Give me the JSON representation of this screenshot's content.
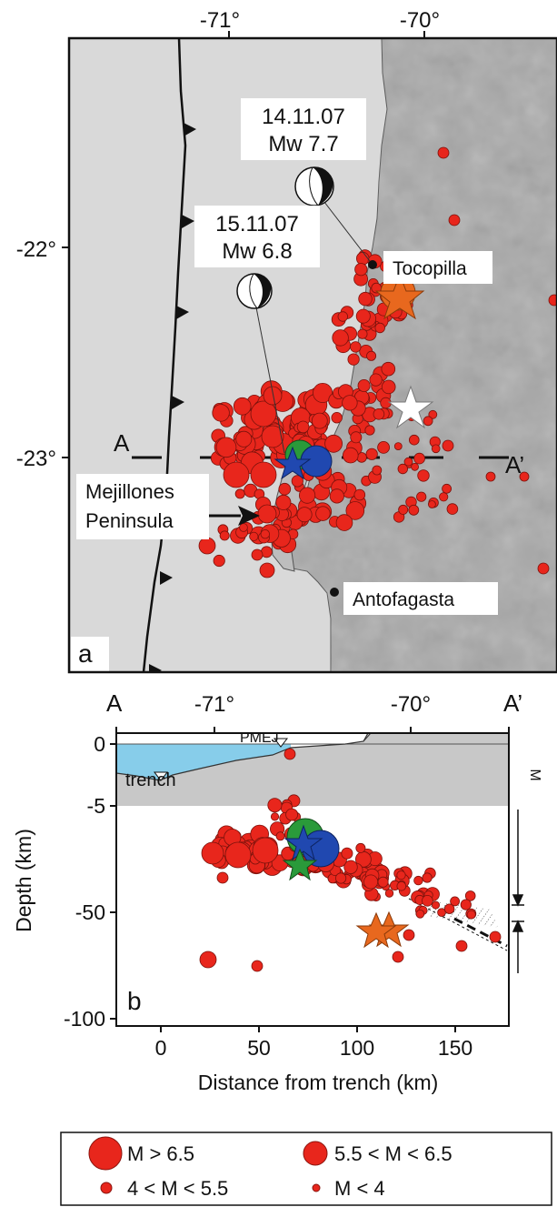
{
  "map": {
    "panel_label": "a",
    "lon_ticks": [
      "-71°",
      "-70°"
    ],
    "lat_ticks": [
      "-22°",
      "-23°"
    ],
    "profile_start": "A",
    "profile_end": "A’",
    "event1": {
      "date": "14.11.07",
      "mag": "Mw 7.7"
    },
    "event2": {
      "date": "15.11.07",
      "mag": "Mw 6.8"
    },
    "places": {
      "tocopilla": "Tocopilla",
      "mejillones_line1": "Mejillones",
      "mejillones_line2": "Peninsula",
      "antofagasta": "Antofagasta"
    },
    "colors": {
      "ocean": "#d9d9d9",
      "land": "#a8a8a8",
      "quake": "#e8261c",
      "star_main": "#e8681e",
      "star_ms": "#2a9a3a",
      "big_ms": "#2048b0"
    }
  },
  "section": {
    "panel_label": "b",
    "top_labels": {
      "left": "A",
      "right": "A’"
    },
    "lon_ticks": [
      "-71°",
      "-70°"
    ],
    "x_ticks": [
      "0",
      "50",
      "100",
      "150"
    ],
    "y_ticks": [
      "0",
      "-5",
      "-50",
      "-100"
    ],
    "xlabel": "Distance from trench (km)",
    "ylabel": "Depth (km)",
    "pmej": "PMEJ",
    "trench": "trench",
    "moho": "M",
    "colors": {
      "water": "#87cdea",
      "crust": "#c8c8c8"
    }
  },
  "legend": {
    "items": [
      {
        "label": "M > 6.5"
      },
      {
        "label": "5.5 < M < 6.5"
      },
      {
        "label": "4 < M < 5.5"
      },
      {
        "label": "M < 4"
      }
    ]
  }
}
